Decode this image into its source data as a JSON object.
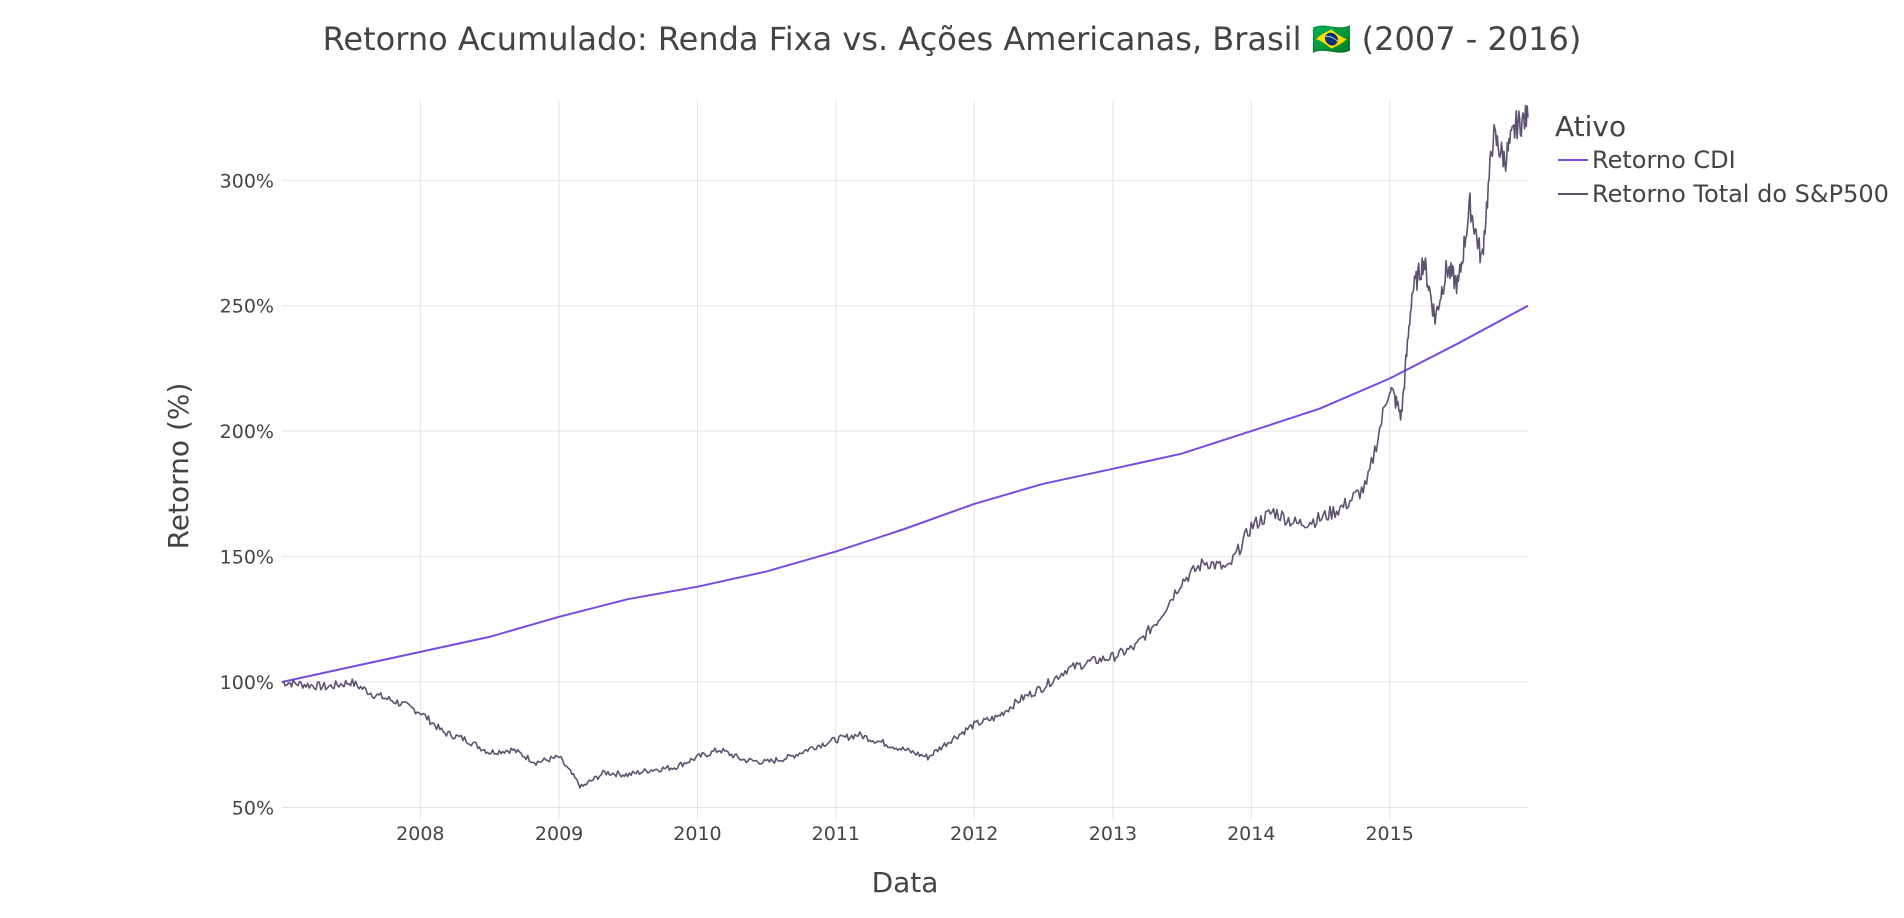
{
  "chart_data": {
    "type": "line",
    "title": "Retorno Acumulado: Renda Fixa vs. Ações Americanas, Brasil 🇧🇷 (2007 - 2016)",
    "xlabel": "Data",
    "ylabel": "Retorno (%)",
    "xlim": [
      "2007-01-01",
      "2016-01-01"
    ],
    "ylim": [
      45,
      332
    ],
    "x_tick_labels": [
      "2008",
      "2009",
      "2010",
      "2011",
      "2012",
      "2013",
      "2014",
      "2015"
    ],
    "y_tick_labels": [
      "50%",
      "100%",
      "150%",
      "200%",
      "250%",
      "300%"
    ],
    "y_tick_values": [
      50,
      100,
      150,
      200,
      250,
      300
    ],
    "grid": true,
    "legend": {
      "title": "Ativo",
      "position": "top-right outside"
    },
    "series": [
      {
        "name": "Retorno CDI",
        "color": "#7a4be0",
        "x": [
          "2007-01-01",
          "2007-07-01",
          "2008-01-01",
          "2008-07-01",
          "2009-01-01",
          "2009-07-01",
          "2010-01-01",
          "2010-07-01",
          "2011-01-01",
          "2011-07-01",
          "2012-01-01",
          "2012-07-01",
          "2013-01-01",
          "2013-07-01",
          "2014-01-01",
          "2014-07-01",
          "2015-01-01",
          "2015-07-01",
          "2016-01-01"
        ],
        "values": [
          100,
          106,
          112,
          118,
          126,
          133,
          138,
          144,
          152,
          161,
          171,
          179,
          185,
          191,
          200,
          209,
          221,
          235,
          250
        ]
      },
      {
        "name": "Retorno Total do S&P500",
        "color": "#5e5270",
        "x": [
          "2007-01-01",
          "2007-03-01",
          "2007-05-01",
          "2007-07-01",
          "2007-09-01",
          "2007-11-01",
          "2008-01-01",
          "2008-03-01",
          "2008-05-01",
          "2008-07-01",
          "2008-09-01",
          "2008-11-01",
          "2009-01-01",
          "2009-03-01",
          "2009-05-01",
          "2009-07-01",
          "2009-09-01",
          "2009-11-01",
          "2010-01-01",
          "2010-03-01",
          "2010-05-01",
          "2010-07-01",
          "2010-09-01",
          "2010-11-01",
          "2011-01-01",
          "2011-03-01",
          "2011-05-01",
          "2011-07-01",
          "2011-09-01",
          "2011-11-01",
          "2012-01-01",
          "2012-03-01",
          "2012-05-01",
          "2012-07-01",
          "2012-09-01",
          "2012-11-01",
          "2013-01-01",
          "2013-03-01",
          "2013-05-01",
          "2013-07-01",
          "2013-09-01",
          "2013-11-01",
          "2014-01-01",
          "2014-03-01",
          "2014-05-01",
          "2014-07-01",
          "2014-09-01",
          "2014-11-01",
          "2015-01-01",
          "2015-02-01",
          "2015-03-01",
          "2015-04-01",
          "2015-05-01",
          "2015-06-01",
          "2015-07-01",
          "2015-08-01",
          "2015-09-01",
          "2015-10-01",
          "2015-11-01",
          "2015-12-01",
          "2016-01-01"
        ],
        "values": [
          100,
          99,
          98,
          100,
          95,
          92,
          88,
          80,
          77,
          72,
          73,
          68,
          70,
          58,
          64,
          63,
          65,
          66,
          70,
          73,
          69,
          68,
          70,
          74,
          77,
          79,
          76,
          73,
          70,
          77,
          83,
          86,
          93,
          98,
          105,
          108,
          110,
          114,
          125,
          140,
          148,
          145,
          162,
          168,
          163,
          165,
          170,
          178,
          218,
          206,
          255,
          268,
          245,
          265,
          258,
          290,
          268,
          318,
          308,
          322,
          325
        ]
      }
    ]
  }
}
